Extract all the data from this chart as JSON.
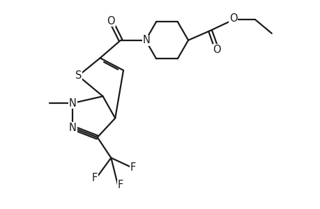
{
  "bg_color": "#ffffff",
  "line_color": "#1a1a1a",
  "line_width": 1.6,
  "font_size": 10.5,
  "figsize": [
    4.6,
    3.0
  ],
  "dpi": 100,
  "xlim": [
    0,
    9.5
  ],
  "ylim": [
    0,
    7.5
  ]
}
